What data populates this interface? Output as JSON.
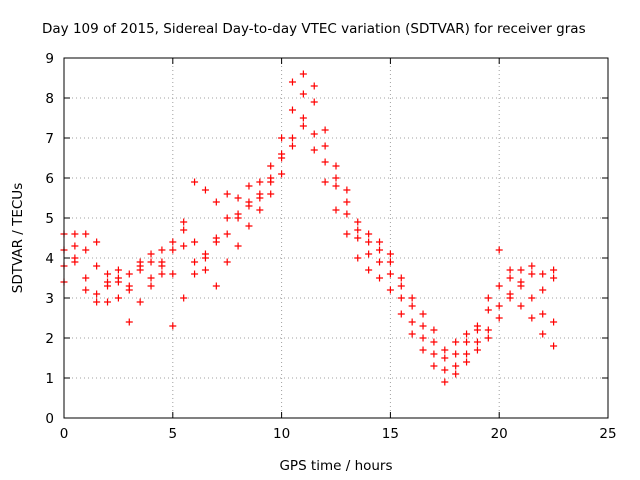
{
  "chart_data": {
    "type": "scatter",
    "title": "Day 109 of 2015, Sidereal Day-to-day VTEC variation (SDTVAR) for receiver gras",
    "xlabel": "GPS time / hours",
    "ylabel": "SDTVAR / TECUs",
    "xlim": [
      0,
      25
    ],
    "ylim": [
      0,
      9
    ],
    "xticks": [
      "0",
      "5",
      "10",
      "15",
      "20",
      "25"
    ],
    "yticks": [
      "0",
      "1",
      "2",
      "3",
      "4",
      "5",
      "6",
      "7",
      "8",
      "9"
    ],
    "grid": true,
    "marker": "+",
    "colors": {
      "series": "#ff0000",
      "axis": "#000000",
      "grid": "#a0a0a0"
    },
    "series": [
      {
        "x": [
          0.0,
          0.5,
          1.0,
          1.5,
          2.0,
          2.5,
          3.0,
          3.5,
          4.0,
          4.5,
          5.0,
          5.5,
          6.0,
          6.5,
          7.0,
          7.5,
          8.0,
          8.5,
          9.0,
          9.5,
          10.0,
          10.5,
          11.0,
          11.5,
          12.0,
          12.5,
          13.0,
          13.5,
          14.0,
          14.5,
          15.0,
          15.5,
          16.0,
          16.5,
          17.0,
          17.5,
          18.0,
          18.5,
          19.0,
          19.5,
          20.0,
          20.5,
          21.0,
          21.5,
          22.0,
          22.5
        ],
        "y": [
          4.2,
          4.3,
          4.6,
          4.4,
          3.6,
          3.0,
          3.2,
          3.7,
          3.9,
          4.2,
          4.4,
          4.9,
          4.4,
          4.0,
          4.5,
          4.6,
          5.0,
          5.3,
          5.5,
          5.9,
          6.5,
          7.0,
          7.5,
          7.1,
          6.4,
          5.8,
          5.1,
          4.5,
          4.1,
          3.9,
          3.6,
          3.0,
          2.4,
          2.0,
          1.6,
          1.2,
          1.3,
          1.6,
          1.9,
          2.2,
          2.8,
          3.1,
          3.3,
          3.0,
          2.6,
          2.4
        ]
      },
      {
        "x": [
          0.0,
          0.5,
          1.0,
          1.5,
          2.0,
          2.5,
          3.0,
          3.5,
          4.0,
          4.5,
          5.0,
          5.5,
          6.0,
          6.5,
          7.0,
          7.5,
          8.0,
          8.5,
          9.0,
          9.5,
          10.0,
          10.5,
          11.0,
          11.5,
          12.0,
          12.5,
          13.0,
          13.5,
          14.0,
          14.5,
          15.0,
          15.5,
          16.0,
          16.5,
          17.0,
          17.5,
          18.0,
          18.5,
          19.0,
          19.5,
          20.0,
          20.5,
          21.0,
          21.5,
          22.0,
          22.5
        ],
        "y": [
          3.4,
          3.9,
          3.5,
          3.1,
          2.9,
          3.4,
          3.6,
          3.8,
          3.5,
          3.9,
          4.2,
          4.7,
          3.9,
          3.7,
          3.3,
          3.9,
          4.3,
          4.8,
          5.2,
          5.6,
          6.1,
          6.8,
          7.3,
          6.7,
          5.9,
          5.2,
          4.6,
          4.0,
          3.7,
          3.5,
          3.2,
          2.6,
          2.1,
          1.7,
          1.3,
          0.9,
          1.1,
          1.4,
          1.7,
          2.0,
          2.5,
          3.0,
          2.8,
          2.5,
          2.1,
          1.8
        ]
      },
      {
        "x": [
          0.0,
          0.5,
          1.0,
          1.5,
          2.0,
          2.5,
          3.0,
          3.5,
          4.0,
          4.5,
          5.0,
          5.5,
          6.0,
          6.5,
          7.0,
          7.5,
          8.0,
          8.5,
          9.0,
          9.5,
          10.0,
          10.5,
          11.0,
          11.5,
          12.0,
          12.5,
          13.0,
          13.5,
          14.0,
          14.5,
          15.0,
          15.5,
          16.0,
          16.5,
          17.0,
          17.5,
          18.0,
          18.5,
          19.0,
          19.5,
          20.0,
          20.5,
          21.0,
          21.5,
          22.0,
          22.5
        ],
        "y": [
          4.6,
          4.0,
          3.2,
          2.9,
          3.3,
          3.7,
          2.4,
          2.9,
          3.3,
          3.6,
          2.3,
          3.0,
          3.6,
          4.1,
          4.4,
          5.0,
          5.5,
          5.8,
          5.6,
          6.0,
          6.6,
          7.7,
          8.1,
          7.9,
          6.8,
          6.0,
          5.4,
          4.7,
          4.4,
          4.2,
          3.9,
          3.3,
          2.8,
          2.3,
          1.9,
          1.5,
          1.6,
          1.9,
          2.2,
          2.7,
          3.3,
          3.5,
          3.7,
          3.6,
          3.2,
          3.5
        ]
      },
      {
        "x": [
          0.0,
          0.5,
          1.0,
          1.5,
          2.0,
          2.5,
          3.0,
          3.5,
          4.0,
          4.5,
          5.0,
          5.5,
          6.0,
          6.5,
          7.0,
          7.5,
          8.0,
          8.5,
          9.0,
          9.5,
          10.0,
          10.5,
          11.0,
          11.5,
          12.0,
          12.5,
          13.0,
          13.5,
          14.0,
          14.5,
          15.0,
          15.5,
          16.0,
          16.5,
          17.0,
          17.5,
          18.0,
          18.5,
          19.0,
          19.5,
          20.0,
          20.5,
          21.0,
          21.5,
          22.0,
          22.5
        ],
        "y": [
          3.8,
          4.6,
          4.2,
          3.8,
          3.4,
          3.5,
          3.3,
          3.9,
          4.1,
          3.8,
          3.6,
          4.3,
          5.9,
          5.7,
          5.4,
          5.6,
          5.1,
          5.4,
          5.9,
          6.3,
          7.0,
          8.4,
          8.6,
          8.3,
          7.2,
          6.3,
          5.7,
          4.9,
          4.6,
          4.4,
          4.1,
          3.5,
          3.0,
          2.6,
          2.2,
          1.7,
          1.9,
          2.1,
          2.3,
          3.0,
          4.2,
          3.7,
          3.4,
          3.8,
          3.6,
          3.7
        ]
      }
    ]
  }
}
